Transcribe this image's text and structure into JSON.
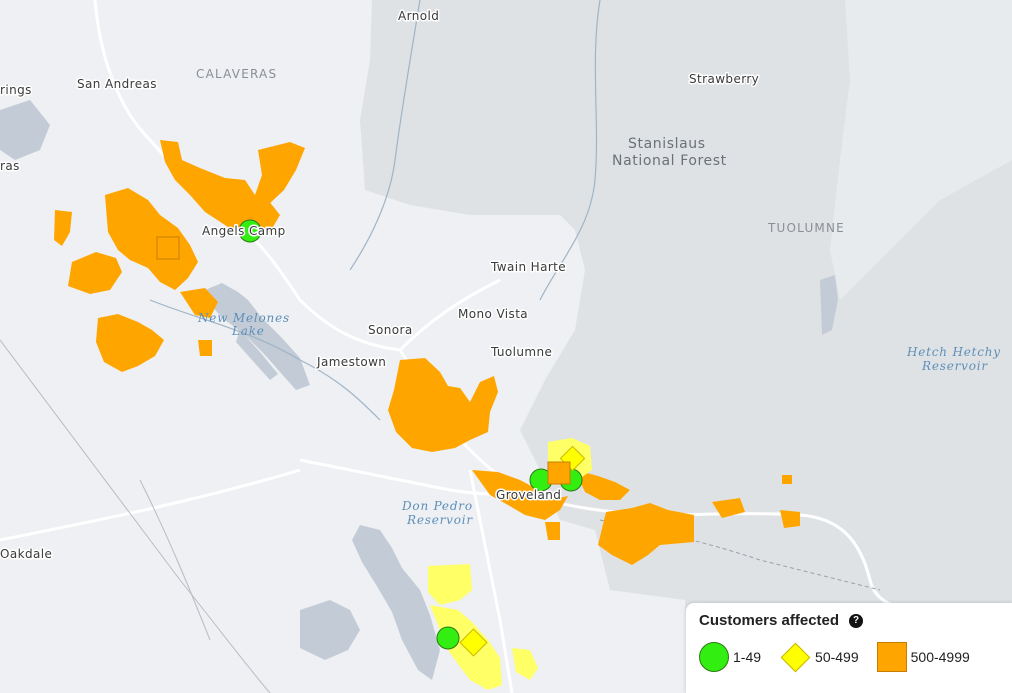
{
  "map": {
    "places": {
      "arnold": "Arnold",
      "calaveras": "CALAVERAS",
      "san_andreas": "San Andreas",
      "rings": "rings",
      "ras": "ras",
      "strawberry": "Strawberry",
      "stanislaus_1": "Stanislaus",
      "stanislaus_2": "National Forest",
      "tuolumne_county": "TUOLUMNE",
      "angels_camp": "Angels Camp",
      "twain_harte": "Twain Harte",
      "mono_vista": "Mono Vista",
      "sonora": "Sonora",
      "tuolumne_city": "Tuolumne",
      "jamestown": "Jamestown",
      "new_melones_1": "New Melones",
      "new_melones_2": "Lake",
      "hetch_hetchy_1": "Hetch Hetchy",
      "hetch_hetchy_2": "Reservoir",
      "don_pedro_1": "Don Pedro",
      "don_pedro_2": "Reservoir",
      "groveland": "Groveland",
      "oakdale": "Oakdale"
    },
    "colors": {
      "background": "#eef0f3",
      "forest": "#dfe2e5",
      "water": "#c3ccd6",
      "roads": "#ffffff",
      "outage_500_4999": "#ffa500",
      "outage_50_499": "#ffff66",
      "outage_1_49": "#33ee11"
    }
  },
  "legend": {
    "title": "Customers affected",
    "help_icon": "question-circle-icon",
    "items": [
      {
        "label": "1-49",
        "symbol": "circle",
        "color": "#33ee11"
      },
      {
        "label": "50-499",
        "symbol": "diamond",
        "color": "#ffff00"
      },
      {
        "label": "500-4999",
        "symbol": "square",
        "color": "#ffa500"
      }
    ]
  }
}
